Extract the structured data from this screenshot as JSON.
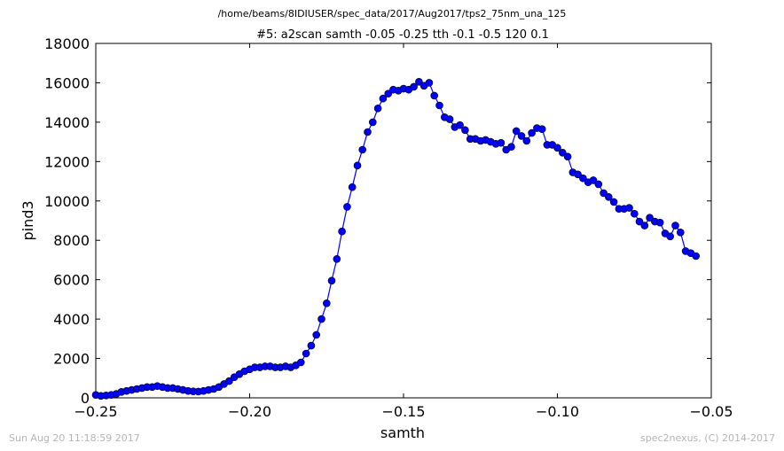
{
  "figure": {
    "path_title": "/home/beams/8IDIUSER/spec_data/2017/Aug2017/tps2_75nm_una_125",
    "footer_left": "Sun Aug 20 11:18:59 2017",
    "footer_right": "spec2nexus, (C) 2014-2017"
  },
  "colors": {
    "series": "#0000ff",
    "axes": "#000000",
    "footer": "#b4b4b4"
  },
  "chart_data": {
    "type": "line",
    "title": "#5: a2scan  samth -0.05 -0.25  tth -0.1 -0.5  120 0.1",
    "xlabel": "samth",
    "ylabel": "pind3",
    "xlim": [
      -0.25,
      -0.05
    ],
    "ylim": [
      0,
      18000
    ],
    "grid": false,
    "markers": "circle",
    "x_ticks": [
      -0.25,
      -0.2,
      -0.15,
      -0.1,
      -0.05
    ],
    "x_tick_labels": [
      "−0.25",
      "−0.20",
      "−0.15",
      "−0.10",
      "−0.05"
    ],
    "y_ticks": [
      0,
      2000,
      4000,
      6000,
      8000,
      10000,
      12000,
      14000,
      16000,
      18000
    ],
    "y_tick_labels": [
      "0",
      "2000",
      "4000",
      "6000",
      "8000",
      "10000",
      "12000",
      "14000",
      "16000",
      "18000"
    ],
    "series": [
      {
        "x_start": -0.25,
        "x_step": 0.0016667,
        "values": [
          150,
          100,
          120,
          150,
          200,
          300,
          350,
          400,
          450,
          500,
          550,
          550,
          600,
          550,
          500,
          500,
          450,
          400,
          350,
          330,
          320,
          350,
          400,
          450,
          550,
          700,
          850,
          1050,
          1200,
          1350,
          1450,
          1550,
          1550,
          1600,
          1600,
          1550,
          1550,
          1600,
          1550,
          1650,
          1800,
          2250,
          2650,
          3200,
          4000,
          4800,
          5950,
          7050,
          8450,
          9700,
          10700,
          11800,
          12600,
          13500,
          14000,
          14700,
          15200,
          15450,
          15650,
          15600,
          15700,
          15650,
          15800,
          16050,
          15850,
          16000,
          15350,
          14850,
          14250,
          14150,
          13750,
          13850,
          13600,
          13150,
          13150,
          13050,
          13100,
          13000,
          12900,
          12950,
          12600,
          12750,
          13550,
          13300,
          13050,
          13450,
          13700,
          13650,
          12850,
          12850,
          12700,
          12450,
          12250,
          11450,
          11350,
          11150,
          10950,
          11050,
          10850,
          10400,
          10200,
          9950,
          9600,
          9600,
          9650,
          9350,
          8950,
          8750,
          9150,
          8950,
          8900,
          8350,
          8200,
          8750,
          8400,
          7450,
          7350,
          7200
        ]
      }
    ]
  }
}
